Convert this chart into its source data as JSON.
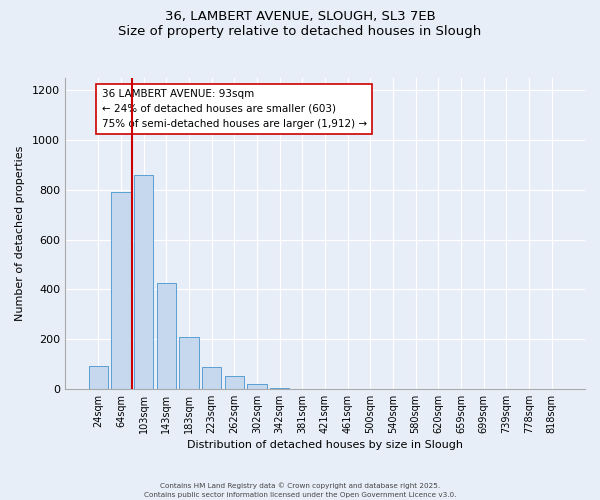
{
  "title": "36, LAMBERT AVENUE, SLOUGH, SL3 7EB",
  "subtitle": "Size of property relative to detached houses in Slough",
  "xlabel": "Distribution of detached houses by size in Slough",
  "ylabel": "Number of detached properties",
  "bar_labels": [
    "24sqm",
    "64sqm",
    "103sqm",
    "143sqm",
    "183sqm",
    "223sqm",
    "262sqm",
    "302sqm",
    "342sqm",
    "381sqm",
    "421sqm",
    "461sqm",
    "500sqm",
    "540sqm",
    "580sqm",
    "620sqm",
    "659sqm",
    "699sqm",
    "739sqm",
    "778sqm",
    "818sqm"
  ],
  "bar_values": [
    90,
    790,
    860,
    425,
    210,
    88,
    52,
    18,
    5,
    1,
    0,
    0,
    0,
    0,
    0,
    0,
    0,
    0,
    0,
    0,
    0
  ],
  "bar_color": "#c5d8ee",
  "bar_edge_color": "#5a9fd4",
  "vline_color": "#cc0000",
  "annotation_title": "36 LAMBERT AVENUE: 93sqm",
  "annotation_line1": "← 24% of detached houses are smaller (603)",
  "annotation_line2": "75% of semi-detached houses are larger (1,912) →",
  "annotation_box_color": "#ffffff",
  "annotation_box_edge": "#cc0000",
  "ylim": [
    0,
    1250
  ],
  "yticks": [
    0,
    200,
    400,
    600,
    800,
    1000,
    1200
  ],
  "footer1": "Contains HM Land Registry data © Crown copyright and database right 2025.",
  "footer2": "Contains public sector information licensed under the Open Government Licence v3.0.",
  "bg_color": "#e8eef8",
  "plot_bg_color": "#e8eef8"
}
